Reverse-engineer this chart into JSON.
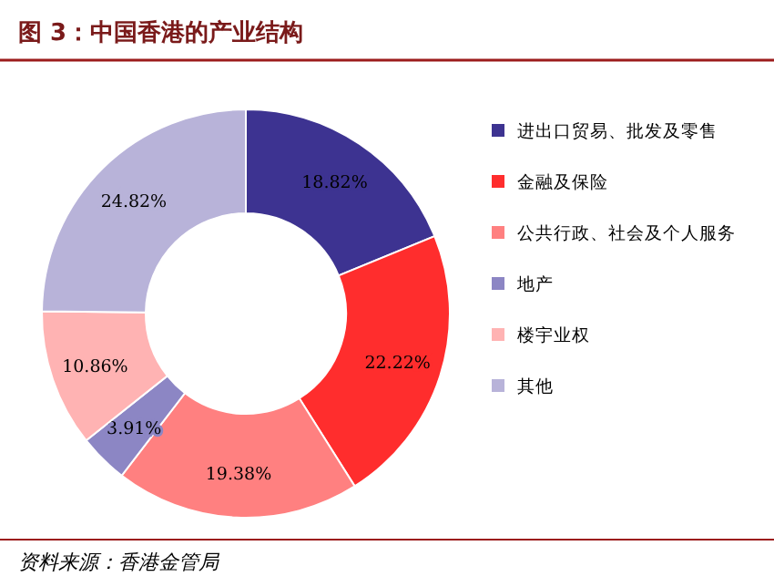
{
  "chart_data": {
    "type": "donut",
    "title": "图 3：中国香港的产业结构",
    "categories": [
      "进出口贸易、批发及零售",
      "金融及保险",
      "公共行政、社会及个人服务",
      "地产",
      "楼宇业权",
      "其他"
    ],
    "values": [
      18.82,
      22.22,
      19.38,
      3.91,
      10.86,
      24.82
    ],
    "colors": [
      "#3d3391",
      "#ff2d2d",
      "#ff8080",
      "#8c86c4",
      "#ffb3b3",
      "#b8b3d9"
    ],
    "value_labels": [
      "18.82%",
      "22.22%",
      "19.38%",
      "3.91%",
      "10.86%",
      "24.82%"
    ],
    "legend": "right",
    "annotations": [
      "资料来源：香港金管局"
    ]
  }
}
